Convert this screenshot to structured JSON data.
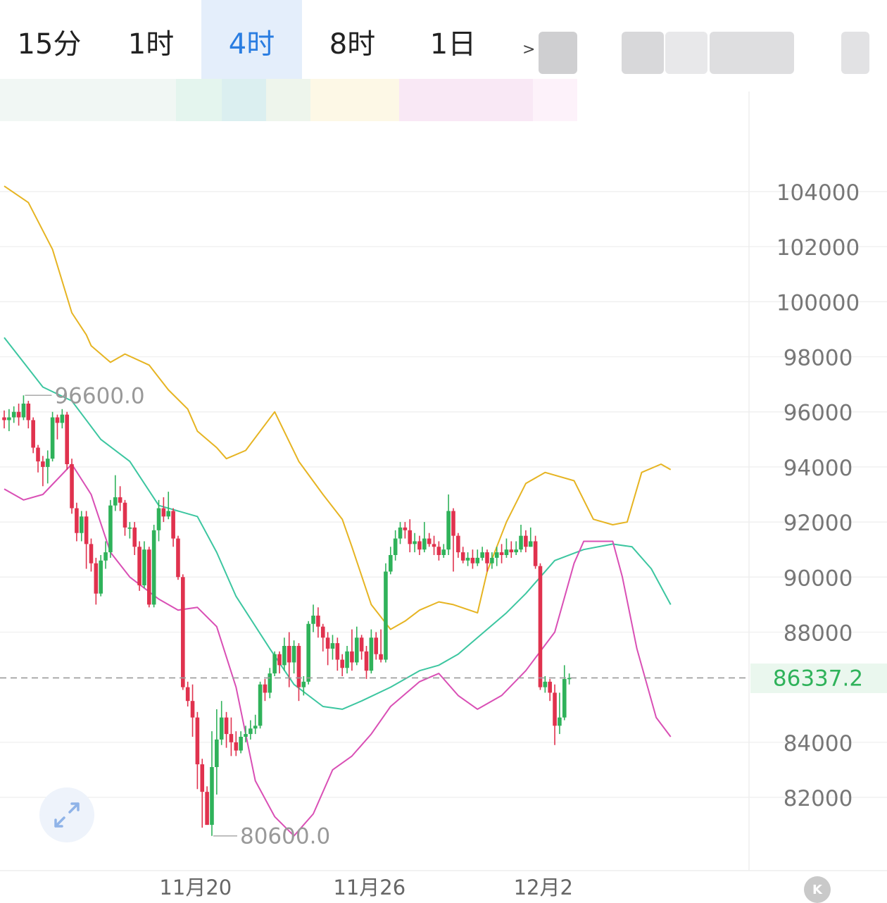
{
  "tabs": [
    {
      "label": "15分",
      "active": false
    },
    {
      "label": "1时",
      "active": false
    },
    {
      "label": "4时",
      "active": true
    },
    {
      "label": "8时",
      "active": false
    },
    {
      "label": "1日",
      "active": false
    }
  ],
  "more_glyph": ">",
  "colors": {
    "up": "#2fb25a",
    "down": "#e0324e",
    "boll_upper": "#e6b422",
    "boll_mid": "#3cc6a0",
    "boll_lower": "#d94fb5",
    "accent": "#2a7de1",
    "grid": "#eeeeee"
  },
  "icons": {
    "expand": "expand-arrows-icon",
    "kline": "k-line-icon"
  },
  "chart_data": {
    "type": "candlestick",
    "ylim": [
      79500,
      106500
    ],
    "y_ticks": [
      104000,
      102000,
      100000,
      98000,
      96000,
      94000,
      92000,
      90000,
      88000,
      84000,
      82000
    ],
    "x_ticks": [
      {
        "label": "11月20",
        "index": 44
      },
      {
        "label": "11月26",
        "index": 80
      },
      {
        "label": "12月2",
        "index": 116
      }
    ],
    "last_price": "86337.2",
    "high_label": "96600.0",
    "low_label": "80600.0",
    "candles": [
      [
        95800,
        95700,
        96050,
        95400
      ],
      [
        95700,
        95800,
        96100,
        95300
      ],
      [
        95800,
        96000,
        96200,
        95600
      ],
      [
        96000,
        95800,
        96300,
        95500
      ],
      [
        95800,
        96300,
        96600,
        95700
      ],
      [
        96300,
        95700,
        96400,
        95400
      ],
      [
        95700,
        94700,
        95800,
        94500
      ],
      [
        94700,
        94200,
        94800,
        93800
      ],
      [
        94200,
        94000,
        94400,
        93300
      ],
      [
        94000,
        94300,
        94600,
        93400
      ],
      [
        94300,
        95800,
        96000,
        94200
      ],
      [
        95800,
        95600,
        95900,
        95000
      ],
      [
        95600,
        95900,
        96100,
        95400
      ],
      [
        95900,
        94100,
        96000,
        93900
      ],
      [
        94100,
        92500,
        94300,
        92300
      ],
      [
        92500,
        91600,
        92700,
        91300
      ],
      [
        91600,
        92200,
        92400,
        91300
      ],
      [
        92200,
        91200,
        92400,
        90300
      ],
      [
        91200,
        90500,
        91400,
        90200
      ],
      [
        90500,
        89400,
        90700,
        89000
      ],
      [
        89400,
        90600,
        90800,
        89300
      ],
      [
        90600,
        90900,
        91300,
        90300
      ],
      [
        90900,
        92600,
        92800,
        90700
      ],
      [
        92600,
        92900,
        93700,
        92400
      ],
      [
        92900,
        92700,
        93300,
        92400
      ],
      [
        92700,
        91800,
        92800,
        91500
      ],
      [
        91800,
        91800,
        92000,
        91400
      ],
      [
        91800,
        91100,
        92000,
        90800
      ],
      [
        91100,
        89700,
        91300,
        89500
      ],
      [
        89700,
        91000,
        91300,
        89600
      ],
      [
        91000,
        89000,
        91100,
        88900
      ],
      [
        89000,
        91700,
        91900,
        88900
      ],
      [
        91700,
        92500,
        92800,
        91300
      ],
      [
        92500,
        92200,
        92900,
        92000
      ],
      [
        92200,
        92400,
        93100,
        92100
      ],
      [
        92400,
        91400,
        92500,
        91100
      ],
      [
        91400,
        90000,
        91500,
        89900
      ],
      [
        90000,
        86000,
        90100,
        85900
      ],
      [
        86000,
        85500,
        86200,
        85300
      ],
      [
        85500,
        84900,
        86100,
        84200
      ],
      [
        84900,
        83200,
        85100,
        82300
      ],
      [
        83200,
        82200,
        83400,
        80900
      ],
      [
        82200,
        81000,
        82400,
        81000
      ],
      [
        81000,
        83100,
        84400,
        80600
      ],
      [
        83100,
        84100,
        85200,
        82100
      ],
      [
        84100,
        84900,
        85500,
        83900
      ],
      [
        84900,
        84300,
        85100,
        83800
      ],
      [
        84300,
        84000,
        84900,
        83500
      ],
      [
        84000,
        83700,
        84400,
        83500
      ],
      [
        83700,
        84200,
        84400,
        83600
      ],
      [
        84200,
        84300,
        84600,
        84000
      ],
      [
        84300,
        84500,
        84800,
        84100
      ],
      [
        84500,
        84600,
        85000,
        84300
      ],
      [
        84600,
        86100,
        86200,
        84500
      ],
      [
        86100,
        85800,
        86300,
        85500
      ],
      [
        85800,
        86500,
        86700,
        85600
      ],
      [
        86500,
        87200,
        87300,
        86400
      ],
      [
        87200,
        86800,
        87300,
        86500
      ],
      [
        86800,
        87500,
        87800,
        86600
      ],
      [
        87500,
        86900,
        88000,
        86000
      ],
      [
        86900,
        87500,
        87700,
        86500
      ],
      [
        87500,
        86000,
        87600,
        85500
      ],
      [
        86000,
        86200,
        86400,
        85700
      ],
      [
        86200,
        88300,
        88400,
        86100
      ],
      [
        88300,
        88600,
        89000,
        88000
      ],
      [
        88600,
        88200,
        88900,
        87800
      ],
      [
        88200,
        87800,
        88300,
        87300
      ],
      [
        87800,
        87400,
        88000,
        86800
      ],
      [
        87400,
        87600,
        87900,
        87000
      ],
      [
        87600,
        87000,
        87800,
        86600
      ],
      [
        87000,
        86700,
        87200,
        86400
      ],
      [
        86700,
        87300,
        87500,
        86500
      ],
      [
        87300,
        86900,
        88100,
        86600
      ],
      [
        86900,
        87800,
        88200,
        86800
      ],
      [
        87800,
        87300,
        87900,
        87000
      ],
      [
        87300,
        86600,
        87500,
        86300
      ],
      [
        86600,
        87800,
        88100,
        86500
      ],
      [
        87800,
        87200,
        88000,
        87000
      ],
      [
        87200,
        87000,
        88100,
        86900
      ],
      [
        87000,
        90200,
        90500,
        86900
      ],
      [
        90200,
        90800,
        91100,
        90100
      ],
      [
        90800,
        91400,
        91700,
        90600
      ],
      [
        91400,
        91800,
        92000,
        91200
      ],
      [
        91800,
        91700,
        92000,
        91400
      ],
      [
        91700,
        91200,
        92100,
        90900
      ],
      [
        91200,
        91300,
        91600,
        90900
      ],
      [
        91300,
        91000,
        91500,
        90800
      ],
      [
        91000,
        91400,
        92000,
        90900
      ],
      [
        91400,
        91200,
        91600,
        91100
      ],
      [
        91200,
        91100,
        91500,
        90800
      ],
      [
        91100,
        90800,
        91300,
        90600
      ],
      [
        90800,
        91000,
        91200,
        90700
      ],
      [
        91000,
        92400,
        93000,
        90800
      ],
      [
        92400,
        91500,
        92500,
        90200
      ],
      [
        91500,
        90900,
        91600,
        90700
      ],
      [
        90900,
        90600,
        91100,
        90500
      ],
      [
        90600,
        90700,
        90900,
        90400
      ],
      [
        90700,
        90500,
        91000,
        90300
      ],
      [
        90500,
        90700,
        91000,
        90400
      ],
      [
        90700,
        90900,
        91100,
        90600
      ],
      [
        90900,
        90500,
        91000,
        90200
      ],
      [
        90500,
        90700,
        90900,
        90300
      ],
      [
        90700,
        90900,
        91100,
        90400
      ],
      [
        90900,
        90800,
        91200,
        90500
      ],
      [
        90800,
        91000,
        91400,
        90700
      ],
      [
        91000,
        90900,
        91300,
        90700
      ],
      [
        90900,
        91000,
        91300,
        90800
      ],
      [
        91000,
        91500,
        91900,
        90900
      ],
      [
        91500,
        91100,
        91700,
        90900
      ],
      [
        91100,
        91300,
        91800,
        91100
      ],
      [
        91300,
        90400,
        91500,
        90300
      ],
      [
        90400,
        86000,
        90500,
        85900
      ],
      [
        86000,
        86200,
        86400,
        85800
      ],
      [
        86200,
        85800,
        86300,
        85500
      ],
      [
        85800,
        84600,
        86100,
        83900
      ],
      [
        84600,
        84900,
        85800,
        84300
      ],
      [
        84900,
        86300,
        86800,
        84800
      ],
      [
        86300,
        86337.2,
        86500,
        86100
      ]
    ],
    "bollinger": {
      "upper": [
        [
          0,
          104200
        ],
        [
          5,
          103600
        ],
        [
          10,
          101900
        ],
        [
          14,
          99600
        ],
        [
          17,
          98800
        ],
        [
          18,
          98400
        ],
        [
          22,
          97800
        ],
        [
          25,
          98100
        ],
        [
          30,
          97700
        ],
        [
          34,
          96800
        ],
        [
          38,
          96100
        ],
        [
          40,
          95300
        ],
        [
          44,
          94700
        ],
        [
          46,
          94300
        ],
        [
          50,
          94600
        ],
        [
          56,
          96000
        ],
        [
          61,
          94200
        ],
        [
          66,
          93000
        ],
        [
          70,
          92100
        ],
        [
          72,
          91100
        ],
        [
          76,
          89000
        ],
        [
          80,
          88100
        ],
        [
          83,
          88400
        ],
        [
          86,
          88800
        ],
        [
          90,
          89100
        ],
        [
          93,
          89000
        ],
        [
          98,
          88700
        ],
        [
          100,
          90200
        ],
        [
          104,
          92000
        ],
        [
          108,
          93400
        ],
        [
          112,
          93800
        ],
        [
          118,
          93500
        ],
        [
          122,
          92100
        ],
        [
          126,
          91900
        ],
        [
          129,
          92000
        ],
        [
          132,
          93800
        ],
        [
          136,
          94100
        ],
        [
          138,
          93900
        ]
      ],
      "middle": [
        [
          0,
          98700
        ],
        [
          8,
          96900
        ],
        [
          14,
          96400
        ],
        [
          20,
          95000
        ],
        [
          26,
          94200
        ],
        [
          32,
          92600
        ],
        [
          40,
          92200
        ],
        [
          44,
          90900
        ],
        [
          48,
          89300
        ],
        [
          55,
          87400
        ],
        [
          60,
          86100
        ],
        [
          66,
          85300
        ],
        [
          70,
          85200
        ],
        [
          74,
          85500
        ],
        [
          80,
          86000
        ],
        [
          86,
          86600
        ],
        [
          90,
          86800
        ],
        [
          94,
          87200
        ],
        [
          100,
          88100
        ],
        [
          104,
          88700
        ],
        [
          108,
          89400
        ],
        [
          114,
          90600
        ],
        [
          120,
          91000
        ],
        [
          126,
          91200
        ],
        [
          130,
          91100
        ],
        [
          134,
          90300
        ],
        [
          138,
          89000
        ]
      ],
      "lower": [
        [
          0,
          93200
        ],
        [
          4,
          92800
        ],
        [
          8,
          93000
        ],
        [
          14,
          94100
        ],
        [
          18,
          93000
        ],
        [
          22,
          90900
        ],
        [
          26,
          90000
        ],
        [
          32,
          89200
        ],
        [
          36,
          88800
        ],
        [
          40,
          88900
        ],
        [
          44,
          88200
        ],
        [
          48,
          86000
        ],
        [
          52,
          82600
        ],
        [
          56,
          81300
        ],
        [
          60,
          80600
        ],
        [
          64,
          81400
        ],
        [
          68,
          83000
        ],
        [
          72,
          83500
        ],
        [
          76,
          84300
        ],
        [
          80,
          85300
        ],
        [
          86,
          86200
        ],
        [
          90,
          86500
        ],
        [
          94,
          85700
        ],
        [
          98,
          85200
        ],
        [
          103,
          85700
        ],
        [
          108,
          86600
        ],
        [
          114,
          88000
        ],
        [
          118,
          90500
        ],
        [
          120,
          91300
        ],
        [
          126,
          91300
        ],
        [
          128,
          90000
        ],
        [
          131,
          87400
        ],
        [
          135,
          84900
        ],
        [
          138,
          84200
        ]
      ]
    }
  }
}
